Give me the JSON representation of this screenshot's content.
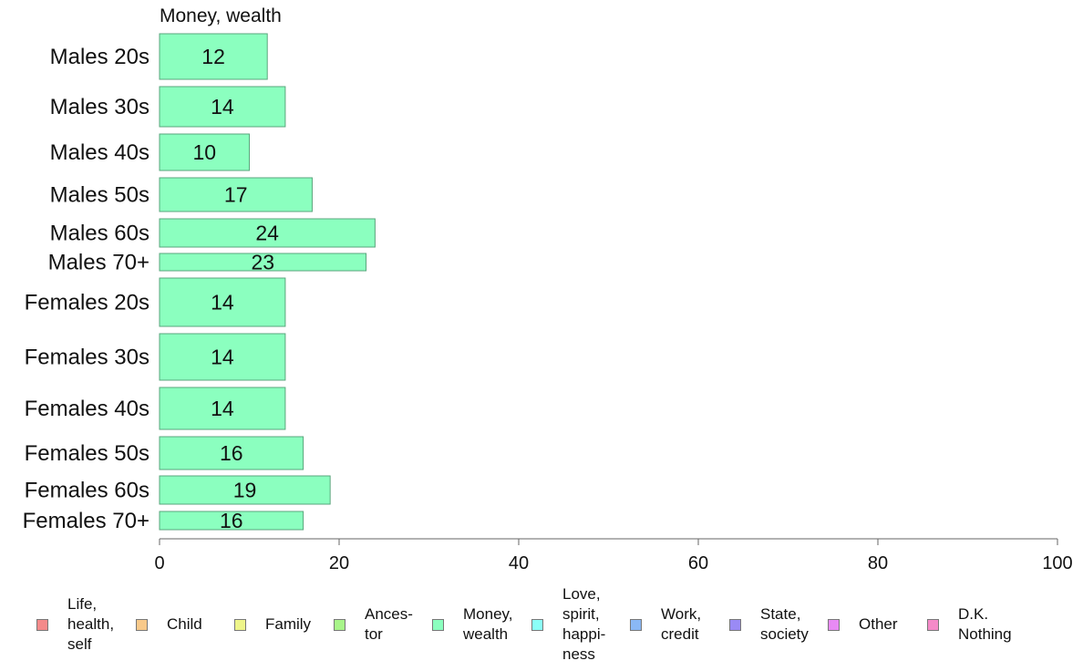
{
  "chart_data": {
    "type": "bar",
    "orientation": "horizontal",
    "panel_title": "Money, wealth",
    "categories": [
      "Males 20s",
      "Males 30s",
      "Males 40s",
      "Males 50s",
      "Males 60s",
      "Males 70+",
      "Females 20s",
      "Females 30s",
      "Females 40s",
      "Females 50s",
      "Females 60s",
      "Females 70+"
    ],
    "values": [
      12,
      14,
      10,
      17,
      24,
      23,
      14,
      14,
      14,
      16,
      19,
      16
    ],
    "bar_labels": [
      "12",
      "14",
      "10",
      "17",
      "24",
      "23",
      "14",
      "14",
      "14",
      "16",
      "19",
      "16"
    ],
    "xlim": [
      0,
      100
    ],
    "x_ticks": [
      "0",
      "20",
      "40",
      "60",
      "80",
      "100"
    ],
    "grid": false,
    "bar_color": "#8bffbf",
    "bar_border_color": "#5aa57c",
    "legend_position": "bottom",
    "legend": [
      {
        "label": "Life,\nhealth,\nself",
        "color": "#f48a8a"
      },
      {
        "label": "Child",
        "color": "#f8c98a"
      },
      {
        "label": "Family",
        "color": "#eef58a"
      },
      {
        "label": "Ances-\ntor",
        "color": "#a8f58a"
      },
      {
        "label": "Money,\nwealth",
        "color": "#8bffbf"
      },
      {
        "label": "Love,\nspirit,\nhappi-\nness",
        "color": "#8bfff8"
      },
      {
        "label": "Work,\ncredit",
        "color": "#8ab8f5"
      },
      {
        "label": "State,\nsociety",
        "color": "#9a8af5"
      },
      {
        "label": "Other",
        "color": "#e88af5"
      },
      {
        "label": "D.K.\nNothing",
        "color": "#f58ac8"
      }
    ]
  }
}
